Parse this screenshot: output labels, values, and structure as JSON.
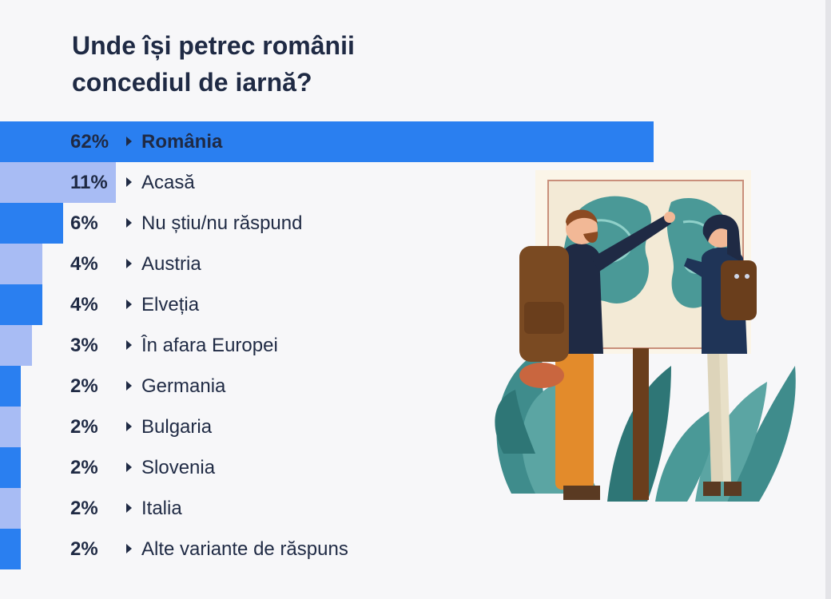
{
  "title_lines": [
    "Unde își petrec românii",
    "concediul de iarnă?"
  ],
  "colors": {
    "bar_primary": "#2a7ff0",
    "bar_secondary": "#a8bcf4",
    "text": "#1f2a44"
  },
  "chart_data": {
    "type": "bar",
    "orientation": "horizontal",
    "title": "Unde își petrec românii concediul de iarnă?",
    "categories": [
      "România",
      "Acasă",
      "Nu știu/nu răspund",
      "Austria",
      "Elveția",
      "În afara Europei",
      "Germania",
      "Bulgaria",
      "Slovenia",
      "Italia",
      "Alte variante de răspuns"
    ],
    "values": [
      62,
      11,
      6,
      4,
      4,
      3,
      2,
      2,
      2,
      2,
      2
    ],
    "labels": [
      "62%",
      "11%",
      "6%",
      "4%",
      "4%",
      "3%",
      "2%",
      "2%",
      "2%",
      "2%",
      "2%"
    ],
    "unit": "%",
    "grid": false,
    "legend": "none"
  }
}
